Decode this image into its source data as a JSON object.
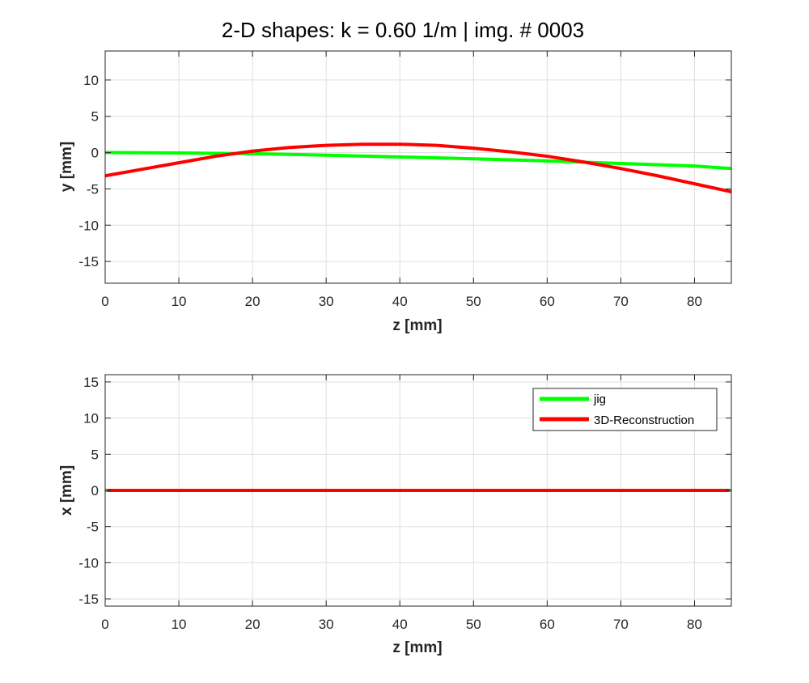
{
  "title": "2-D shapes: k = 0.60 1/m | img. # 0003",
  "legend": {
    "entries": [
      "jig",
      "3D-Reconstruction"
    ],
    "placement": "top-right"
  },
  "chart_data": [
    {
      "type": "line",
      "xlabel": "z [mm]",
      "ylabel": "y [mm]",
      "xlim": [
        0,
        85
      ],
      "ylim": [
        -18,
        14
      ],
      "xticks": [
        0,
        10,
        20,
        30,
        40,
        50,
        60,
        70,
        80
      ],
      "yticks": [
        -15,
        -10,
        -5,
        0,
        5,
        10
      ],
      "grid": true,
      "series": [
        {
          "name": "jig",
          "color": "#00ff00",
          "x": [
            0,
            10,
            20,
            30,
            40,
            50,
            60,
            70,
            80,
            85
          ],
          "y": [
            0.0,
            -0.05,
            -0.15,
            -0.35,
            -0.6,
            -0.85,
            -1.15,
            -1.5,
            -1.85,
            -2.2
          ]
        },
        {
          "name": "3D-Reconstruction",
          "color": "#ff0000",
          "x": [
            0,
            5,
            10,
            15,
            20,
            25,
            30,
            35,
            40,
            45,
            50,
            55,
            60,
            65,
            70,
            75,
            80,
            85
          ],
          "y": [
            -3.2,
            -2.3,
            -1.4,
            -0.5,
            0.2,
            0.7,
            1.0,
            1.15,
            1.15,
            1.0,
            0.6,
            0.1,
            -0.5,
            -1.3,
            -2.2,
            -3.2,
            -4.3,
            -5.4
          ]
        }
      ]
    },
    {
      "type": "line",
      "xlabel": "z [mm]",
      "ylabel": "x [mm]",
      "xlim": [
        0,
        85
      ],
      "ylim": [
        -16,
        16
      ],
      "xticks": [
        0,
        10,
        20,
        30,
        40,
        50,
        60,
        70,
        80
      ],
      "yticks": [
        -15,
        -10,
        -5,
        0,
        5,
        10,
        15
      ],
      "grid": true,
      "series": [
        {
          "name": "jig",
          "color": "#00ff00",
          "x": [
            0,
            85
          ],
          "y": [
            0,
            0
          ]
        },
        {
          "name": "3D-Reconstruction",
          "color": "#ff0000",
          "x": [
            0.3,
            84.7
          ],
          "y": [
            0,
            0
          ]
        }
      ]
    }
  ]
}
